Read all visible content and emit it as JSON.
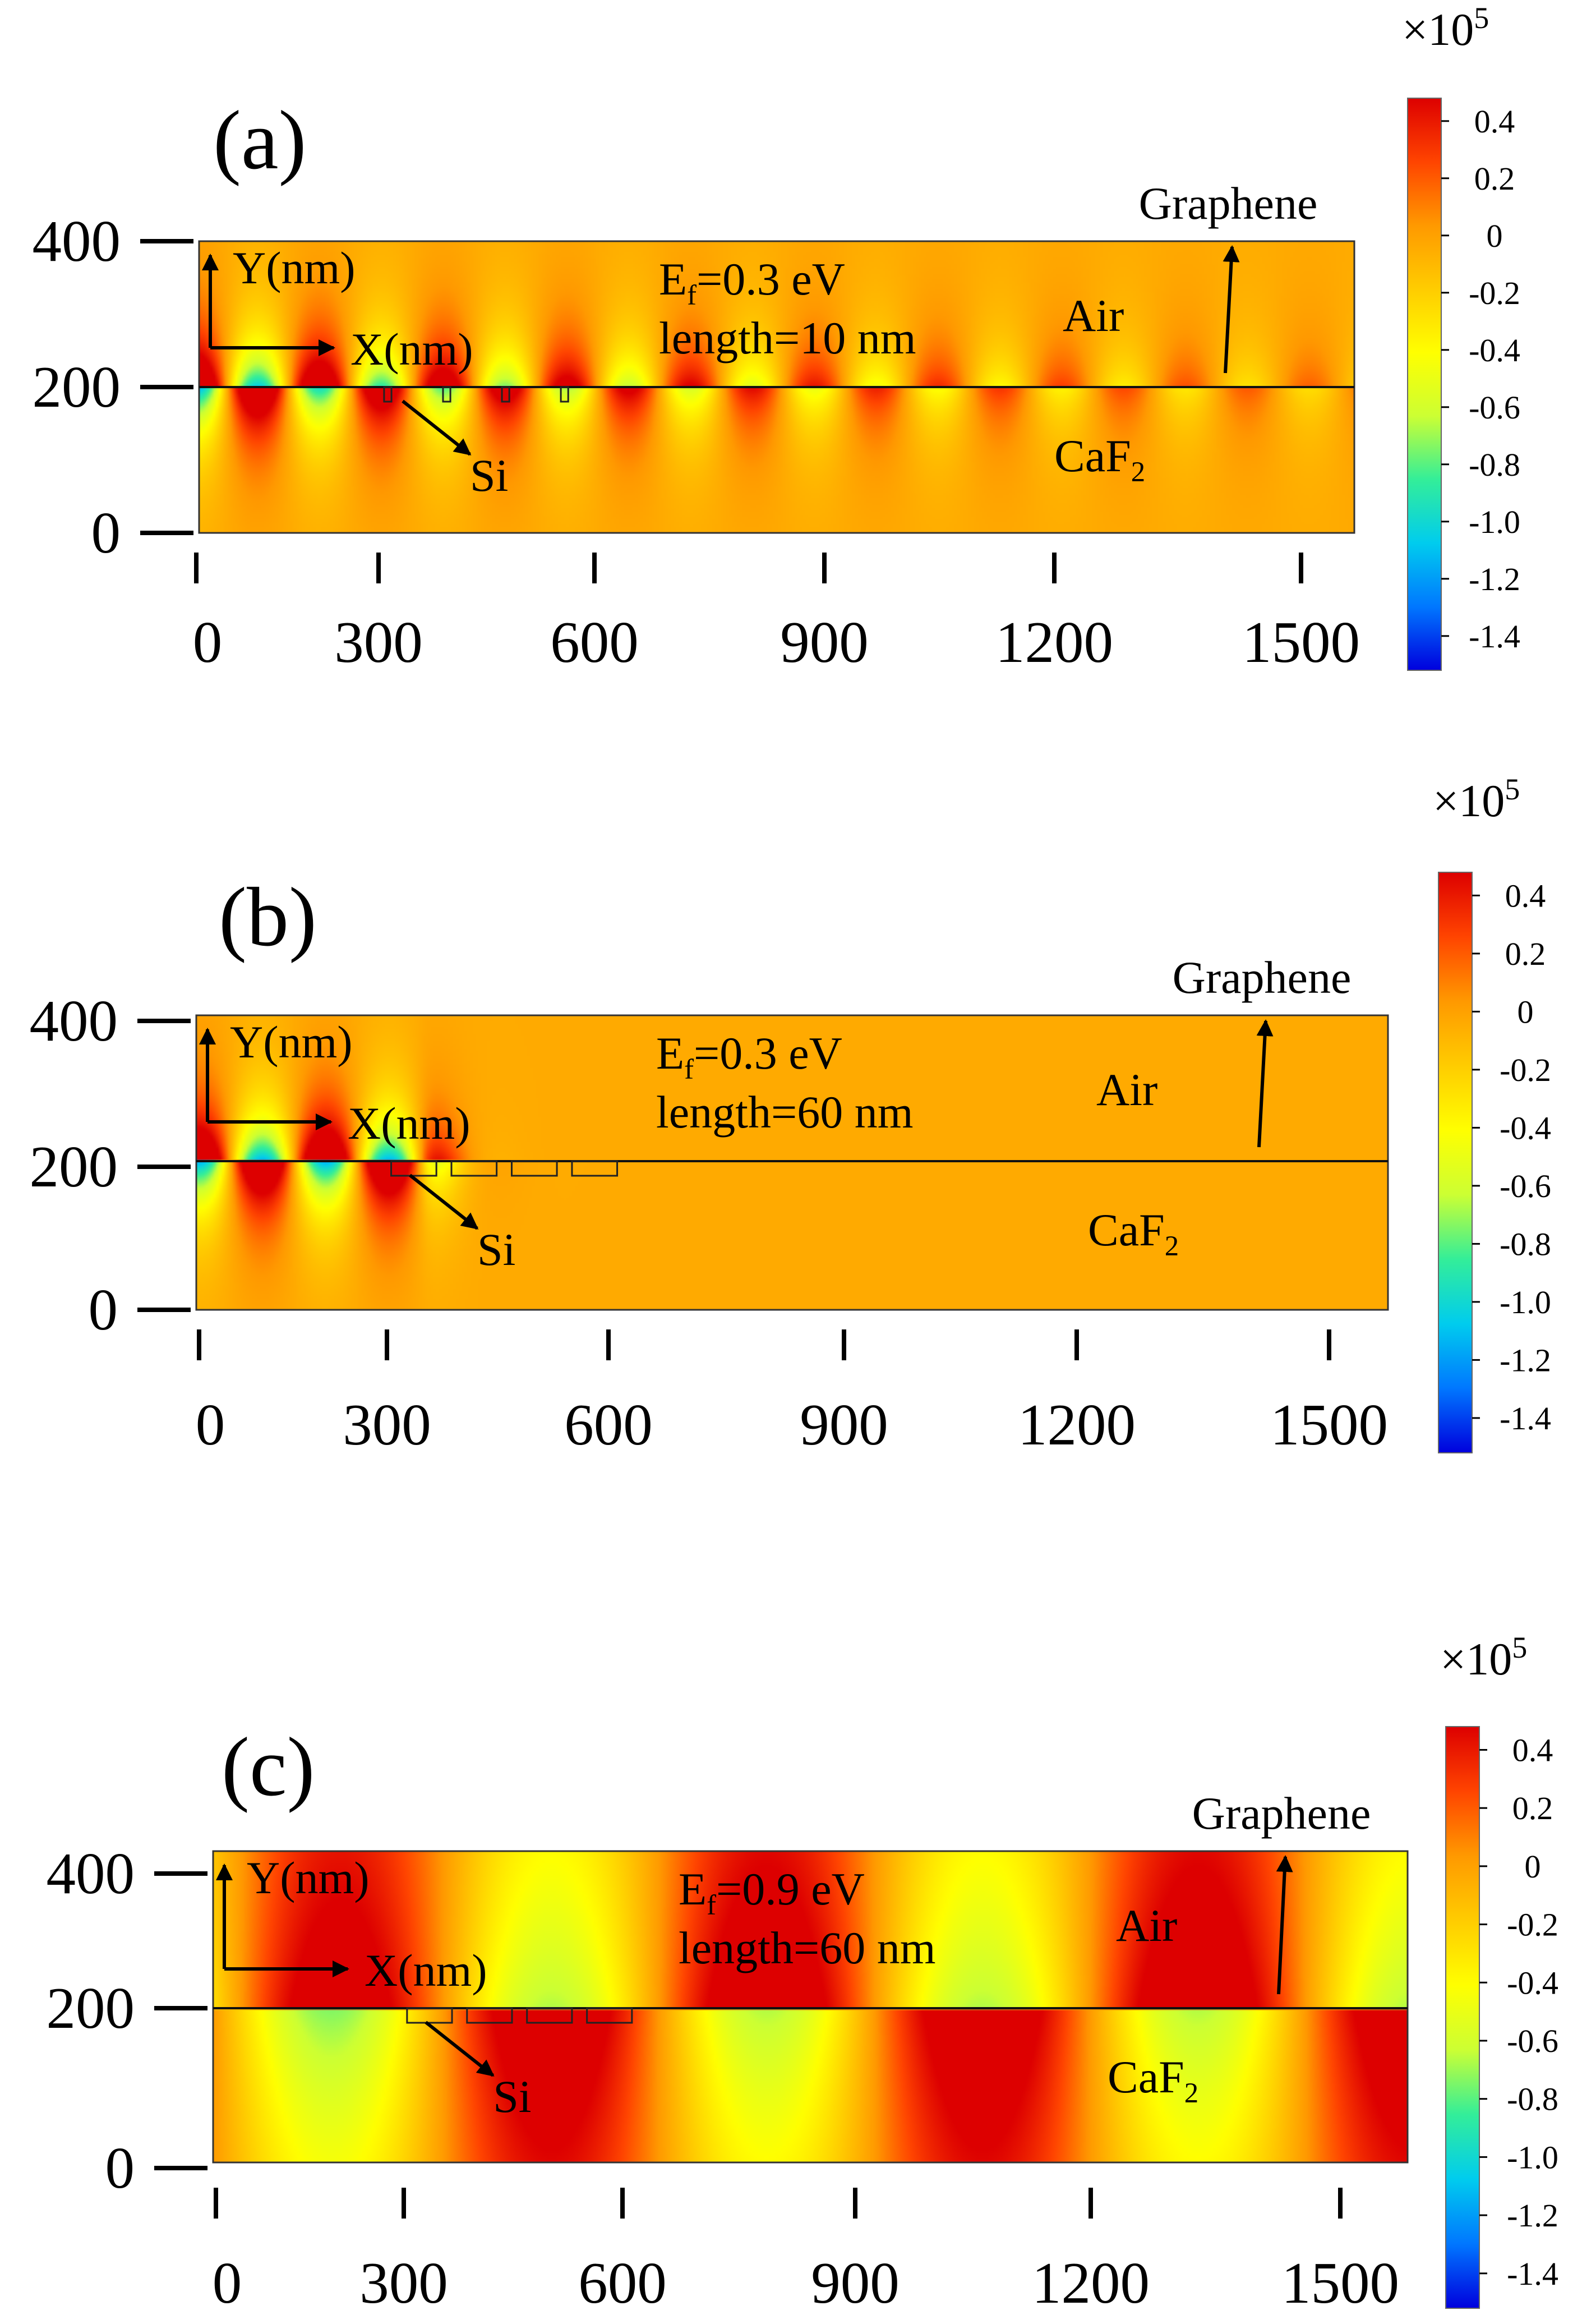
{
  "figure": {
    "panels": [
      {
        "label": "(a)",
        "ef_text": "=0.3 eV",
        "length_text": "length=10 nm",
        "si_count": 4,
        "si_start_nm": 255,
        "si_spacing_nm": 80,
        "si_width_nm": 10,
        "field": {
          "kind": "decaying",
          "wavelength_nm": 168,
          "decay_nm": 950,
          "amp": 1.5,
          "kz_nm": 60
        }
      },
      {
        "label": "(b)",
        "ef_text": "=0.3 eV",
        "length_text": "length=60 nm",
        "si_count": 4,
        "si_start_nm": 255,
        "si_spacing_nm": 80,
        "si_width_nm": 60,
        "field": {
          "kind": "blocked",
          "wavelength_nm": 168,
          "cutoff_nm": 300,
          "amp": 1.5,
          "kz_nm": 60
        }
      },
      {
        "label": "(c)",
        "ef_text": "=0.9 eV",
        "length_text": "length=60 nm",
        "si_count": 4,
        "si_start_nm": 255,
        "si_spacing_nm": 80,
        "si_width_nm": 60,
        "field": {
          "kind": "long",
          "wavelength_nm": 575,
          "amp": 1.0,
          "kz_nm": 400
        }
      }
    ],
    "axes": {
      "x_ticks": [
        0,
        300,
        600,
        900,
        1200,
        1500
      ],
      "y_ticks": [
        0,
        200,
        400
      ],
      "xlim": [
        0,
        1500
      ],
      "ylim": [
        0,
        400
      ]
    },
    "annotations": {
      "y_axis_arrow": "Y(nm)",
      "x_axis_arrow": "X(nm)",
      "graphene": "Graphene",
      "air": "Air",
      "substrate": "CaF",
      "substrate_sub": "2",
      "si": "Si",
      "ef_main": "E",
      "ef_sub": "f"
    },
    "colorbar": {
      "multiplier": "×10",
      "exponent": "5",
      "ticks": [
        "0.4",
        "0.2",
        "0",
        "-0.2",
        "-0.4",
        "-0.6",
        "-0.8",
        "-1.0",
        "-1.2",
        "-1.4"
      ],
      "range": [
        -1.5,
        0.5
      ],
      "stops": [
        "#0000dd",
        "#0077ff",
        "#00ccee",
        "#33ee99",
        "#ccff33",
        "#ffff00",
        "#ffcc00",
        "#ff9900",
        "#ff4400",
        "#dd0000"
      ]
    }
  },
  "chart_data": [
    {
      "type": "heatmap",
      "title": "(a)",
      "annotations": [
        "Ef=0.3 eV",
        "length=10 nm",
        "Graphene",
        "Air",
        "CaF2",
        "Si",
        "Y(nm)",
        "X(nm)"
      ],
      "x_ticks": [
        0,
        300,
        600,
        900,
        1200,
        1500
      ],
      "y_ticks": [
        0,
        200,
        400
      ],
      "xlim": [
        0,
        1500
      ],
      "ylim": [
        0,
        400
      ],
      "colorbar": {
        "label": "×10^5",
        "ticks": [
          0.4,
          0.2,
          0,
          -0.2,
          -0.4,
          -0.6,
          -0.8,
          -1.0,
          -1.2,
          -1.4
        ]
      }
    },
    {
      "type": "heatmap",
      "title": "(b)",
      "annotations": [
        "Ef=0.3 eV",
        "length=60 nm",
        "Graphene",
        "Air",
        "CaF2",
        "Si",
        "Y(nm)",
        "X(nm)"
      ],
      "x_ticks": [
        0,
        300,
        600,
        900,
        1200,
        1500
      ],
      "y_ticks": [
        0,
        200,
        400
      ],
      "xlim": [
        0,
        1500
      ],
      "ylim": [
        0,
        400
      ],
      "colorbar": {
        "label": "×10^5",
        "ticks": [
          0.4,
          0.2,
          0,
          -0.2,
          -0.4,
          -0.6,
          -0.8,
          -1.0,
          -1.2,
          -1.4
        ]
      }
    },
    {
      "type": "heatmap",
      "title": "(c)",
      "annotations": [
        "Ef=0.9 eV",
        "length=60 nm",
        "Graphene",
        "Air",
        "CaF2",
        "Si",
        "Y(nm)",
        "X(nm)"
      ],
      "x_ticks": [
        0,
        300,
        600,
        900,
        1200,
        1500
      ],
      "y_ticks": [
        0,
        200,
        400
      ],
      "xlim": [
        0,
        1500
      ],
      "ylim": [
        0,
        400
      ],
      "colorbar": {
        "label": "×10^5",
        "ticks": [
          0.4,
          0.2,
          0,
          -0.2,
          -0.4,
          -0.6,
          -0.8,
          -1.0,
          -1.2,
          -1.4
        ]
      }
    }
  ]
}
